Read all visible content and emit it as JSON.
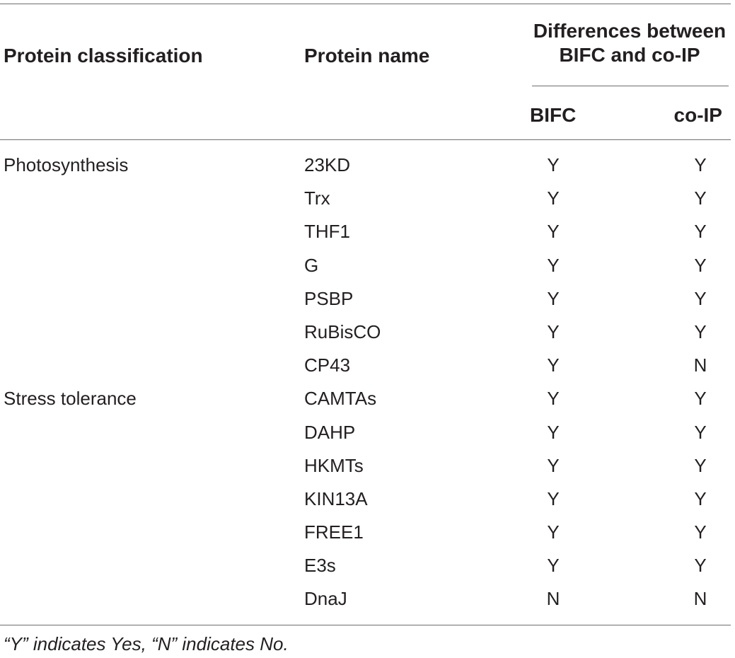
{
  "header": {
    "protein_classification": "Protein classification",
    "protein_name": "Protein name",
    "group_line1": "Differences between",
    "group_line2": "BIFC and co-IP",
    "bifc": "BIFC",
    "coip": "co-IP"
  },
  "rows": [
    {
      "classification": "Photosynthesis",
      "name": "23KD",
      "bifc": "Y",
      "coip": "Y"
    },
    {
      "classification": "",
      "name": "Trx",
      "bifc": "Y",
      "coip": "Y"
    },
    {
      "classification": "",
      "name": "THF1",
      "bifc": "Y",
      "coip": "Y"
    },
    {
      "classification": "",
      "name": "G",
      "bifc": "Y",
      "coip": "Y"
    },
    {
      "classification": "",
      "name": "PSBP",
      "bifc": "Y",
      "coip": "Y"
    },
    {
      "classification": "",
      "name": "RuBisCO",
      "bifc": "Y",
      "coip": "Y"
    },
    {
      "classification": "",
      "name": "CP43",
      "bifc": "Y",
      "coip": "N"
    },
    {
      "classification": "Stress tolerance",
      "name": "CAMTAs",
      "bifc": "Y",
      "coip": "Y"
    },
    {
      "classification": "",
      "name": "DAHP",
      "bifc": "Y",
      "coip": "Y"
    },
    {
      "classification": "",
      "name": "HKMTs",
      "bifc": "Y",
      "coip": "Y"
    },
    {
      "classification": "",
      "name": "KIN13A",
      "bifc": "Y",
      "coip": "Y"
    },
    {
      "classification": "",
      "name": "FREE1",
      "bifc": "Y",
      "coip": "Y"
    },
    {
      "classification": "",
      "name": "E3s",
      "bifc": "Y",
      "coip": "Y"
    },
    {
      "classification": "",
      "name": "DnaJ",
      "bifc": "N",
      "coip": "N"
    }
  ],
  "footnote": "“Y” indicates Yes, “N” indicates No."
}
